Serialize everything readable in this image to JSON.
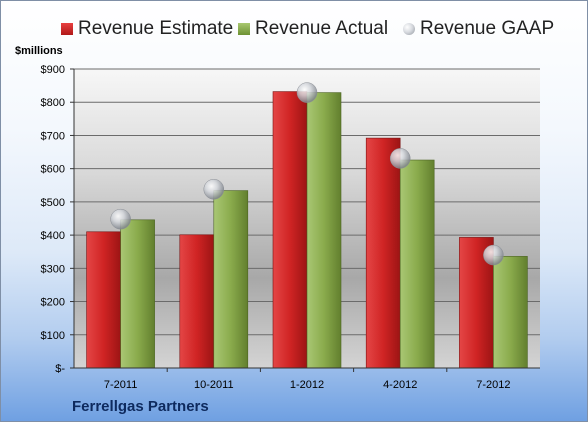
{
  "chart_data": {
    "type": "bar",
    "ylabel": "$millions",
    "ylim": [
      0,
      900
    ],
    "yticks": [
      0,
      100,
      200,
      300,
      400,
      500,
      600,
      700,
      800,
      900
    ],
    "ytick_labels": [
      "$-",
      "$100",
      "$200",
      "$300",
      "$400",
      "$500",
      "$600",
      "$700",
      "$800",
      "$900"
    ],
    "categories": [
      "7-2011",
      "10-2011",
      "1-2012",
      "4-2012",
      "7-2012"
    ],
    "series": [
      {
        "name": "Revenue Estimate",
        "kind": "bar",
        "color": "#c8201f",
        "values": [
          410,
          401,
          832,
          692,
          393
        ]
      },
      {
        "name": "Revenue Actual",
        "kind": "bar",
        "color": "#89a84a",
        "values": [
          446,
          534,
          829,
          626,
          336
        ]
      },
      {
        "name": "Revenue GAAP",
        "kind": "marker",
        "color": "#c0c4ca",
        "values": [
          448,
          538,
          829,
          631,
          340
        ]
      }
    ],
    "grid": true,
    "legend": "top"
  },
  "footer": {
    "company": "Ferrellgas Partners"
  }
}
